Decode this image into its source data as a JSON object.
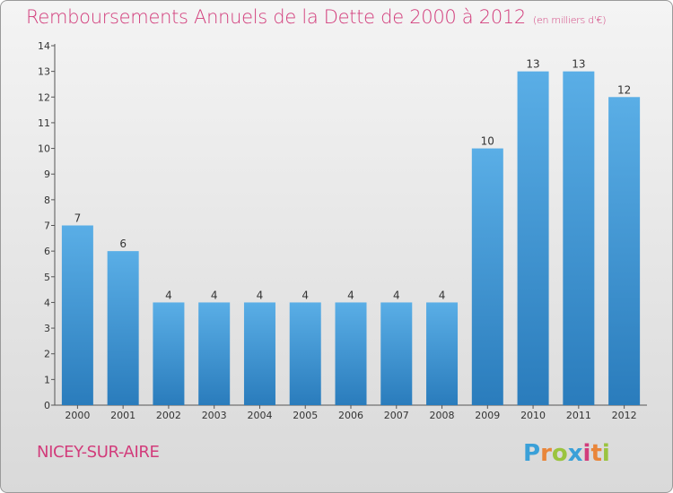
{
  "title": "Remboursements Annuels de la Dette de 2000 à 2012",
  "unit": "(en milliers d'€)",
  "commune": "NICEY-SUR-AIRE",
  "logo": {
    "letters": [
      "P",
      "r",
      "o",
      "x",
      "i",
      "t",
      "i"
    ],
    "colors": [
      "#3aa0d8",
      "#e9863a",
      "#9bc43f",
      "#3aa0d8",
      "#d23c7b",
      "#e9863a",
      "#9bc43f"
    ]
  },
  "colors": {
    "bar": "#4a9fdc",
    "accent": "#d23c7b"
  },
  "chart_data": {
    "type": "bar",
    "categories": [
      "2000",
      "2001",
      "2002",
      "2003",
      "2004",
      "2005",
      "2006",
      "2007",
      "2008",
      "2009",
      "2010",
      "2011",
      "2012"
    ],
    "values": [
      7,
      6,
      4,
      4,
      4,
      4,
      4,
      4,
      4,
      10,
      13,
      13,
      12
    ],
    "ylim": [
      0,
      14
    ],
    "yticks": [
      0,
      1,
      2,
      3,
      4,
      5,
      6,
      7,
      8,
      9,
      10,
      11,
      12,
      13,
      14
    ],
    "grid": false
  }
}
